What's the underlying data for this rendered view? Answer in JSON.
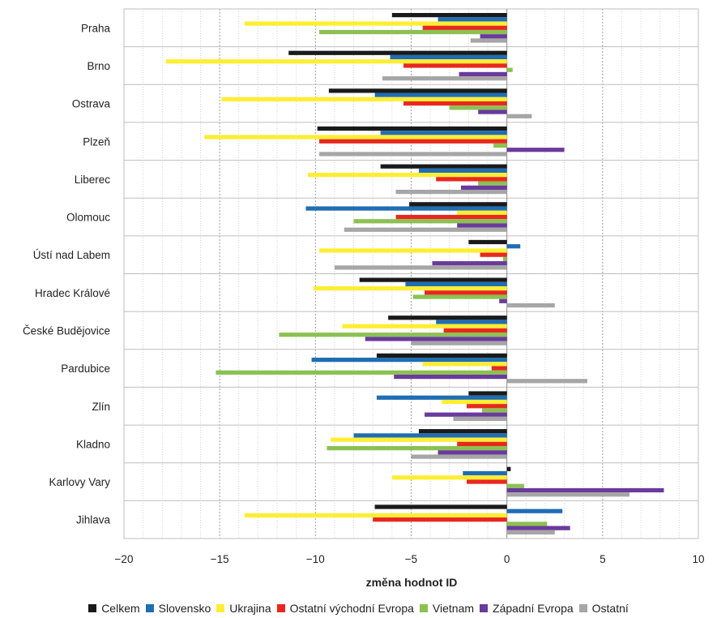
{
  "chart_data": {
    "type": "bar",
    "orientation": "horizontal",
    "xlabel": "změna hodnot ID",
    "xlim": [
      -20,
      10
    ],
    "xticks": [
      -20,
      -15,
      -10,
      -5,
      0,
      5,
      10
    ],
    "xtick_labels": [
      "−20",
      "−15",
      "−10",
      "−5",
      "0",
      "5",
      "10"
    ],
    "grid": "vertical dotted",
    "legend_position": "bottom",
    "categories": [
      "Praha",
      "Brno",
      "Ostrava",
      "Plzeň",
      "Liberec",
      "Olomouc",
      "Ústí nad Labem",
      "Hradec Králové",
      "České Budějovice",
      "Pardubice",
      "Zlín",
      "Kladno",
      "Karlovy Vary",
      "Jihlava"
    ],
    "series": [
      {
        "name": "Celkem",
        "color": "#1a1a1a",
        "values": [
          -6.0,
          -11.4,
          -9.3,
          -9.9,
          -6.6,
          -5.1,
          -2.0,
          -7.7,
          -6.2,
          -6.8,
          -2.0,
          -4.6,
          0.2,
          -6.9
        ]
      },
      {
        "name": "Slovensko",
        "color": "#1f6db3",
        "values": [
          -3.6,
          -6.1,
          -6.9,
          -6.6,
          -4.6,
          -10.5,
          0.7,
          -5.3,
          -3.7,
          -10.2,
          -6.8,
          -8.0,
          -2.3,
          2.9
        ]
      },
      {
        "name": "Ukrajina",
        "color": "#ffee33",
        "values": [
          -13.7,
          -17.8,
          -14.9,
          -15.8,
          -10.4,
          -2.6,
          -9.8,
          -10.1,
          -8.6,
          -4.4,
          -3.4,
          -9.2,
          -6.0,
          -13.7
        ]
      },
      {
        "name": "Ostatní východní Evropa",
        "color": "#e8281e",
        "values": [
          -4.4,
          -5.4,
          -5.4,
          -9.8,
          -3.7,
          -5.8,
          -1.4,
          -4.3,
          -3.3,
          -0.8,
          -2.1,
          -2.6,
          -2.1,
          -7.0
        ]
      },
      {
        "name": "Vietnam",
        "color": "#8cc152",
        "values": [
          -9.8,
          0.3,
          -3.0,
          -0.7,
          -1.5,
          -8.0,
          -0.2,
          -4.9,
          -11.9,
          -15.2,
          -1.3,
          -9.4,
          0.9,
          2.1
        ]
      },
      {
        "name": "Západní Evropa",
        "color": "#6a3a9c",
        "values": [
          -1.4,
          -2.5,
          -1.5,
          3.0,
          -2.4,
          -2.6,
          -3.9,
          -0.4,
          -7.4,
          -5.9,
          -4.3,
          -3.6,
          8.2,
          3.3
        ]
      },
      {
        "name": "Ostatní",
        "color": "#a6a6a6",
        "values": [
          -1.9,
          -6.5,
          1.3,
          -9.8,
          -5.8,
          -8.5,
          -9.0,
          2.5,
          -5.0,
          4.2,
          -2.8,
          -5.0,
          6.4,
          2.5
        ]
      }
    ]
  }
}
